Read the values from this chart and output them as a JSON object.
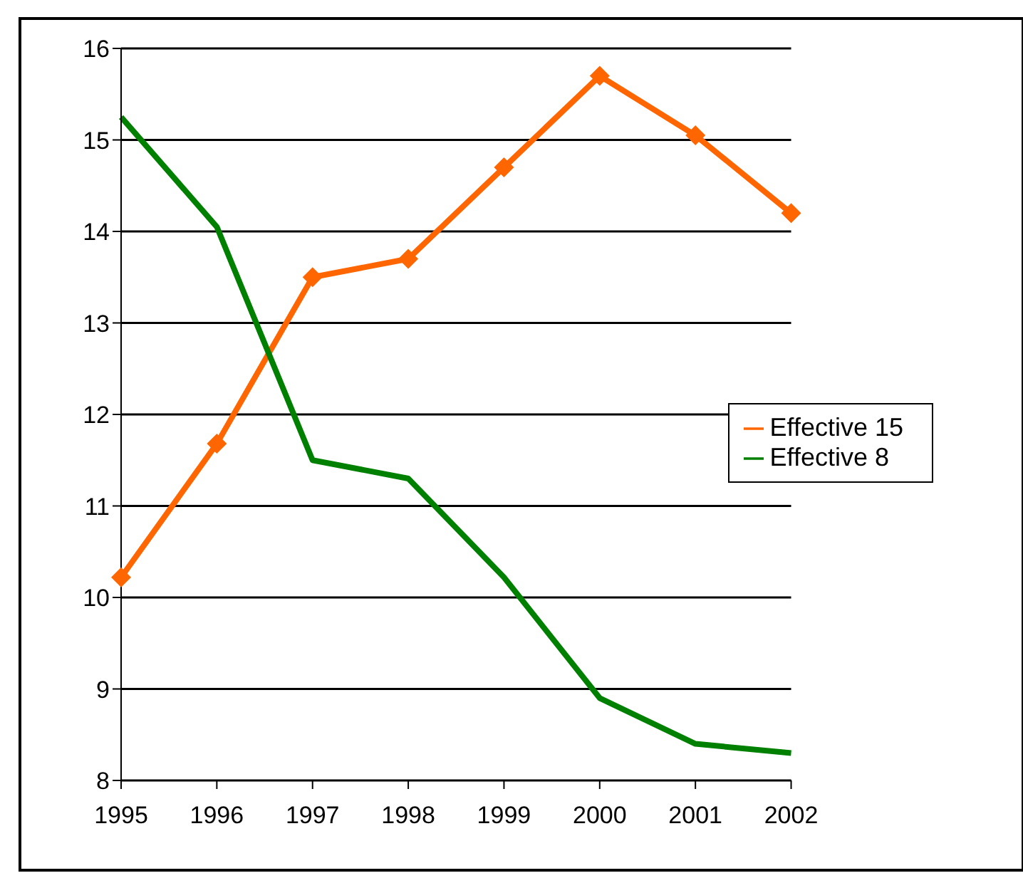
{
  "chart_data": {
    "type": "line",
    "categories": [
      "1995",
      "1996",
      "1997",
      "1998",
      "1999",
      "2000",
      "2001",
      "2002"
    ],
    "series": [
      {
        "name": "Effective 15",
        "color": "#ff6600",
        "marker": "diamond",
        "values": [
          10.22,
          11.68,
          13.5,
          13.7,
          14.7,
          15.7,
          15.05,
          14.2
        ]
      },
      {
        "name": "Effective 8",
        "color": "#008000",
        "marker": "none",
        "values": [
          15.25,
          14.05,
          11.5,
          11.3,
          10.22,
          8.9,
          8.4,
          8.3
        ]
      }
    ],
    "ylim": [
      8,
      16
    ],
    "yticks": [
      8,
      9,
      10,
      11,
      12,
      13,
      14,
      15,
      16
    ],
    "grid": "y",
    "legend": "right",
    "line_style": "solid"
  }
}
